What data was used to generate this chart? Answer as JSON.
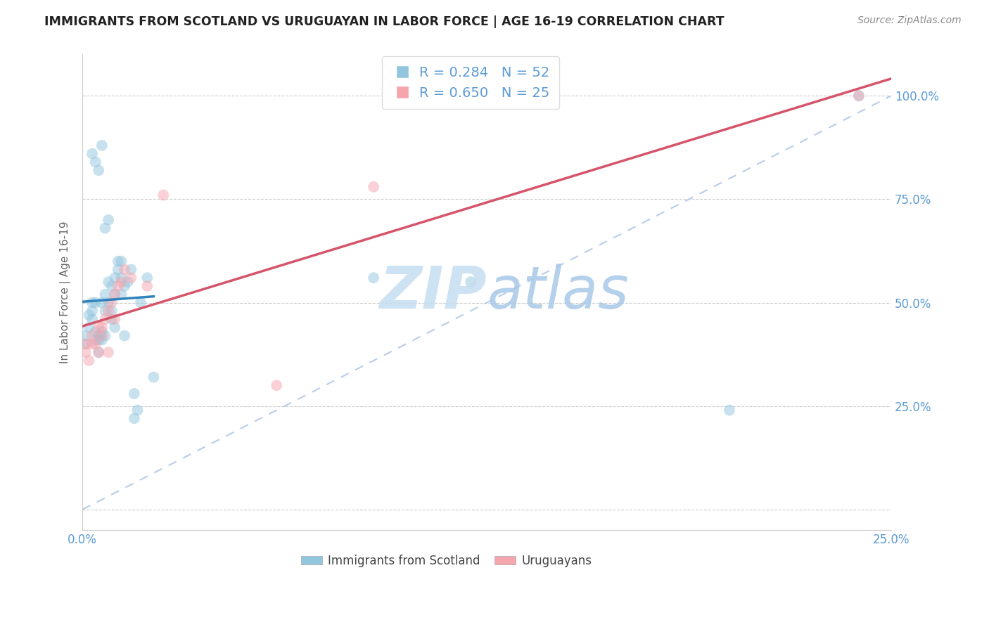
{
  "title": "IMMIGRANTS FROM SCOTLAND VS URUGUAYAN IN LABOR FORCE | AGE 16-19 CORRELATION CHART",
  "source": "Source: ZipAtlas.com",
  "ylabel": "In Labor Force | Age 16-19",
  "blue_R": 0.284,
  "blue_N": 52,
  "pink_R": 0.65,
  "pink_N": 25,
  "blue_color": "#92c5de",
  "pink_color": "#f4a5ae",
  "blue_line_color": "#3182bd",
  "pink_line_color": "#d6546a",
  "diag_color": "#b0c8e8",
  "grid_color": "#cccccc",
  "tick_color": "#5b9bd5",
  "ylabel_color": "#666666",
  "title_color": "#222222",
  "source_color": "#888888",
  "watermark_color": "#ddeef8",
  "scatter_size": 130,
  "scatter_alpha": 0.5,
  "xlim": [
    0.0,
    0.25
  ],
  "ylim": [
    -0.05,
    1.1
  ],
  "blue_x": [
    0.001,
    0.001,
    0.002,
    0.002,
    0.003,
    0.003,
    0.003,
    0.004,
    0.004,
    0.004,
    0.005,
    0.005,
    0.005,
    0.006,
    0.006,
    0.006,
    0.007,
    0.007,
    0.007,
    0.008,
    0.008,
    0.009,
    0.009,
    0.009,
    0.01,
    0.01,
    0.01,
    0.011,
    0.011,
    0.012,
    0.012,
    0.013,
    0.013,
    0.014,
    0.015,
    0.016,
    0.017,
    0.018,
    0.02,
    0.022,
    0.003,
    0.004,
    0.005,
    0.006,
    0.007,
    0.008,
    0.012,
    0.016,
    0.09,
    0.12,
    0.2,
    0.24
  ],
  "blue_y": [
    0.4,
    0.42,
    0.44,
    0.47,
    0.46,
    0.48,
    0.5,
    0.41,
    0.43,
    0.5,
    0.41,
    0.42,
    0.38,
    0.41,
    0.43,
    0.5,
    0.52,
    0.48,
    0.42,
    0.55,
    0.5,
    0.46,
    0.48,
    0.54,
    0.56,
    0.52,
    0.44,
    0.6,
    0.58,
    0.56,
    0.52,
    0.54,
    0.42,
    0.55,
    0.58,
    0.28,
    0.24,
    0.5,
    0.56,
    0.32,
    0.86,
    0.84,
    0.82,
    0.88,
    0.68,
    0.7,
    0.6,
    0.22,
    0.56,
    0.55,
    0.24,
    1.0
  ],
  "pink_x": [
    0.001,
    0.001,
    0.002,
    0.003,
    0.003,
    0.004,
    0.005,
    0.005,
    0.006,
    0.006,
    0.007,
    0.008,
    0.008,
    0.009,
    0.01,
    0.01,
    0.011,
    0.012,
    0.013,
    0.015,
    0.02,
    0.025,
    0.06,
    0.09,
    0.24
  ],
  "pink_y": [
    0.38,
    0.4,
    0.36,
    0.42,
    0.4,
    0.4,
    0.44,
    0.38,
    0.42,
    0.44,
    0.46,
    0.48,
    0.38,
    0.5,
    0.52,
    0.46,
    0.54,
    0.55,
    0.58,
    0.56,
    0.54,
    0.76,
    0.3,
    0.78,
    1.0
  ]
}
